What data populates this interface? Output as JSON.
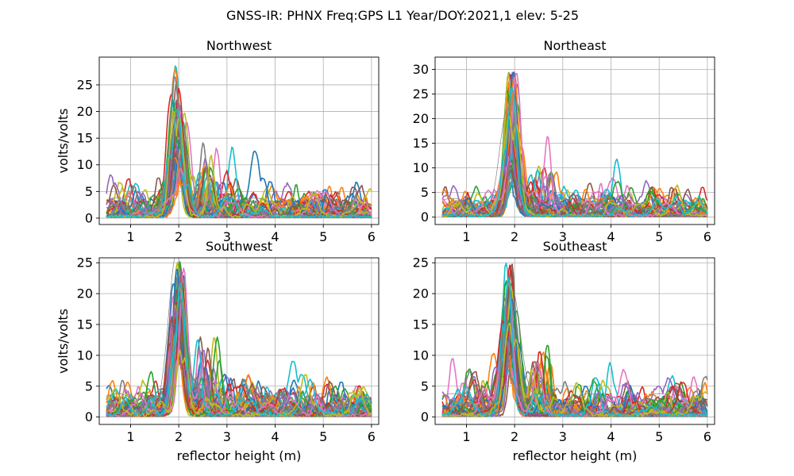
{
  "figure": {
    "title": "GNSS-IR: PHNX Freq:GPS L1 Year/DOY:2021,1 elev: 5-25"
  },
  "style": {
    "series_colors": [
      "#1f77b4",
      "#ff7f0e",
      "#2ca02c",
      "#d62728",
      "#9467bd",
      "#8c564b",
      "#e377c2",
      "#7f7f7f",
      "#bcbd22",
      "#17becf"
    ],
    "reference_line_color": "#808080",
    "grid_color": "#b0b0b0"
  },
  "chart_data": [
    {
      "type": "line",
      "title": "Northwest",
      "xlabel": "",
      "ylabel": "volts/volts",
      "xlim": [
        0.35,
        6.15
      ],
      "ylim": [
        -1.2,
        30.2
      ],
      "xticks": [
        1,
        2,
        3,
        4,
        5,
        6
      ],
      "yticks": [
        0,
        5,
        10,
        15,
        20,
        25
      ],
      "grid": true,
      "series_count": 60,
      "peak_reflector_height_m": 2.0,
      "peak_amplitude_range": [
        8,
        28
      ],
      "reference_line": {
        "peak_height_m": 2.0,
        "peak_amplitude": 17
      },
      "series_sample": [
        {
          "x": [
            0.5,
            1.0,
            1.5,
            1.8,
            2.0,
            2.2,
            2.5,
            3.0,
            4.0,
            5.0,
            6.0
          ],
          "y": [
            2,
            3,
            2,
            8,
            28,
            9,
            4,
            3,
            2,
            2,
            1.5
          ]
        },
        {
          "x": [
            0.5,
            1.0,
            1.5,
            1.8,
            2.0,
            2.2,
            2.5,
            3.0,
            4.0,
            5.0,
            6.0
          ],
          "y": [
            3,
            2,
            4,
            12,
            22,
            6,
            3,
            4,
            3,
            2,
            2
          ]
        },
        {
          "x": [
            0.5,
            1.0,
            1.5,
            1.8,
            2.0,
            2.2,
            2.5,
            3.0,
            4.0,
            5.0,
            6.0
          ],
          "y": [
            1,
            2,
            3,
            6,
            15,
            4,
            2,
            3,
            4,
            2,
            1
          ]
        }
      ]
    },
    {
      "type": "line",
      "title": "Northeast",
      "xlabel": "",
      "ylabel": "",
      "xlim": [
        0.35,
        6.15
      ],
      "ylim": [
        -1.5,
        32.5
      ],
      "xticks": [
        1,
        2,
        3,
        4,
        5,
        6
      ],
      "yticks": [
        0,
        5,
        10,
        15,
        20,
        25,
        30
      ],
      "grid": true,
      "series_count": 60,
      "peak_reflector_height_m": 1.95,
      "peak_amplitude_range": [
        8,
        31
      ],
      "reference_line": {
        "peak_height_m": 1.85,
        "peak_amplitude": 19
      },
      "series_sample": [
        {
          "x": [
            0.5,
            1.0,
            1.5,
            1.8,
            1.95,
            2.2,
            2.6,
            3.0,
            4.0,
            5.0,
            6.0
          ],
          "y": [
            3,
            2,
            4,
            10,
            31,
            8,
            13,
            5,
            4,
            2,
            2
          ]
        },
        {
          "x": [
            0.5,
            1.0,
            1.5,
            1.8,
            1.95,
            2.2,
            2.6,
            3.0,
            4.0,
            5.0,
            6.0
          ],
          "y": [
            2,
            3,
            6,
            14,
            25,
            5,
            9,
            3,
            3,
            3,
            2
          ]
        },
        {
          "x": [
            0.5,
            1.0,
            1.5,
            1.8,
            1.95,
            2.2,
            2.6,
            3.0,
            4.0,
            5.0,
            6.0
          ],
          "y": [
            1,
            1,
            3,
            7,
            15,
            4,
            5,
            4,
            2,
            1,
            1
          ]
        }
      ]
    },
    {
      "type": "line",
      "title": "Southwest",
      "xlabel": "reflector height (m)",
      "ylabel": "volts/volts",
      "xlim": [
        0.35,
        6.15
      ],
      "ylim": [
        -1.2,
        25.8
      ],
      "xticks": [
        1,
        2,
        3,
        4,
        5,
        6
      ],
      "yticks": [
        0,
        5,
        10,
        15,
        20,
        25
      ],
      "grid": true,
      "series_count": 60,
      "peak_reflector_height_m": 2.0,
      "peak_amplitude_range": [
        13.5,
        24.5
      ],
      "reference_line": {
        "peak_height_m": 1.95,
        "peak_amplitude": 23
      },
      "series_sample": [
        {
          "x": [
            0.5,
            1.0,
            1.5,
            1.8,
            2.0,
            2.2,
            2.5,
            3.0,
            4.0,
            5.0,
            6.0
          ],
          "y": [
            3,
            4,
            3,
            5,
            24.5,
            8,
            6,
            4,
            3,
            2,
            3
          ]
        },
        {
          "x": [
            0.5,
            1.0,
            1.5,
            1.8,
            2.0,
            2.2,
            2.5,
            3.0,
            4.0,
            5.0,
            6.0
          ],
          "y": [
            2,
            2,
            4,
            8,
            19,
            5,
            4,
            3,
            2,
            2,
            1
          ]
        },
        {
          "x": [
            0.5,
            1.0,
            1.5,
            1.8,
            2.0,
            2.2,
            2.5,
            3.0,
            4.0,
            5.0,
            6.0
          ],
          "y": [
            4,
            3,
            2,
            6,
            13.5,
            4,
            5,
            3,
            2,
            1,
            2
          ]
        }
      ]
    },
    {
      "type": "line",
      "title": "Southeast",
      "xlabel": "reflector height (m)",
      "ylabel": "",
      "xlim": [
        0.35,
        6.15
      ],
      "ylim": [
        -1.2,
        25.8
      ],
      "xticks": [
        1,
        2,
        3,
        4,
        5,
        6
      ],
      "yticks": [
        0,
        5,
        10,
        15,
        20,
        25
      ],
      "grid": true,
      "series_count": 60,
      "peak_reflector_height_m": 1.9,
      "peak_amplitude_range": [
        10,
        24.5
      ],
      "reference_line": {
        "peak_height_m": 1.95,
        "peak_amplitude": 17
      },
      "series_sample": [
        {
          "x": [
            0.5,
            1.0,
            1.5,
            1.8,
            1.9,
            2.2,
            2.6,
            3.0,
            4.0,
            5.0,
            6.0
          ],
          "y": [
            4,
            3,
            4,
            10,
            24,
            17,
            7,
            6,
            3,
            2,
            1.5
          ]
        },
        {
          "x": [
            0.5,
            1.0,
            1.5,
            1.8,
            1.9,
            2.2,
            2.6,
            3.0,
            4.0,
            5.0,
            6.0
          ],
          "y": [
            2,
            2,
            5,
            14,
            19,
            6,
            4,
            5,
            2,
            1,
            1
          ]
        },
        {
          "x": [
            0.5,
            1.0,
            1.5,
            1.8,
            1.9,
            2.2,
            2.6,
            3.0,
            4.0,
            5.0,
            6.0
          ],
          "y": [
            3,
            4,
            2,
            7,
            12,
            4,
            3,
            3,
            2,
            2,
            1
          ]
        }
      ]
    }
  ]
}
